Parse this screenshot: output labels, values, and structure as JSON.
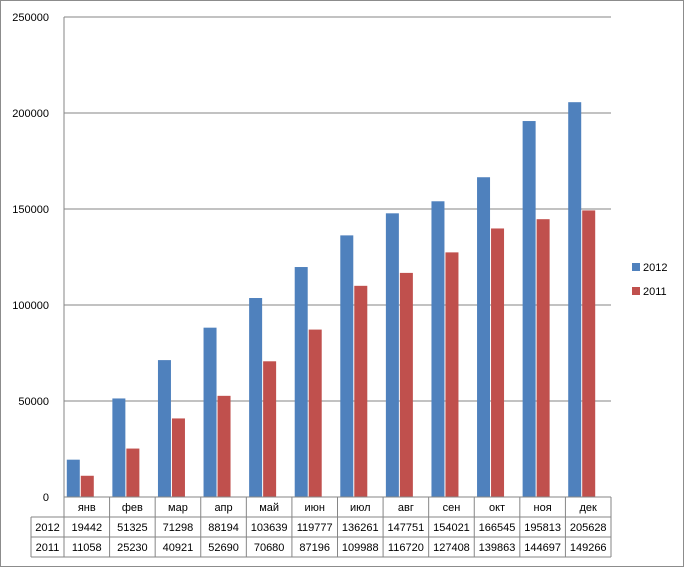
{
  "chart_data": {
    "type": "bar",
    "categories": [
      "янв",
      "фев",
      "мар",
      "апр",
      "май",
      "июн",
      "июл",
      "авг",
      "сен",
      "окт",
      "ноя",
      "дек"
    ],
    "series": [
      {
        "name": "2012",
        "color": "#4F81BD",
        "values": [
          19442,
          51325,
          71298,
          88194,
          103639,
          119777,
          136261,
          147751,
          154021,
          166545,
          195813,
          205628
        ]
      },
      {
        "name": "2011",
        "color": "#C0504D",
        "values": [
          11058,
          25230,
          40921,
          52690,
          70680,
          87196,
          109988,
          116720,
          127408,
          139863,
          144697,
          149266
        ]
      }
    ],
    "yticks": [
      "0",
      "50000",
      "100000",
      "150000",
      "200000",
      "250000"
    ],
    "ylim": [
      0,
      250000
    ],
    "grid": true,
    "legend": "right",
    "data_table": true
  }
}
